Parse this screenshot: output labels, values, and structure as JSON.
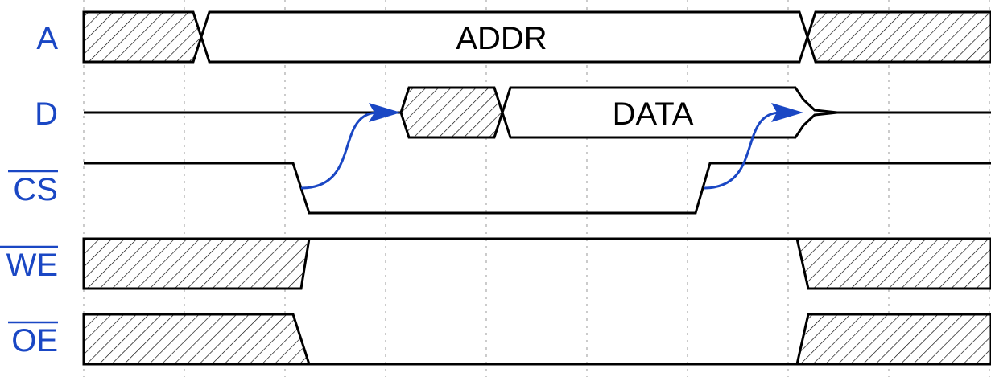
{
  "colors": {
    "label": "#1a47c4",
    "arrow": "#1a47c4",
    "wave": "#000000",
    "grid": "#a9a9a9"
  },
  "signals": [
    {
      "id": "a",
      "name": "A",
      "active_low": false
    },
    {
      "id": "d",
      "name": "D",
      "active_low": false
    },
    {
      "id": "cs",
      "name": "CS",
      "active_low": true
    },
    {
      "id": "we",
      "name": "WE",
      "active_low": true
    },
    {
      "id": "oe",
      "name": "OE",
      "active_low": true
    }
  ],
  "buses": {
    "addr_label": "ADDR",
    "data_label": "DATA"
  },
  "arrows": [
    {
      "from": "CS falling edge",
      "to": "D invalid data start"
    },
    {
      "from": "CS rising edge",
      "to": "D data end"
    }
  ]
}
